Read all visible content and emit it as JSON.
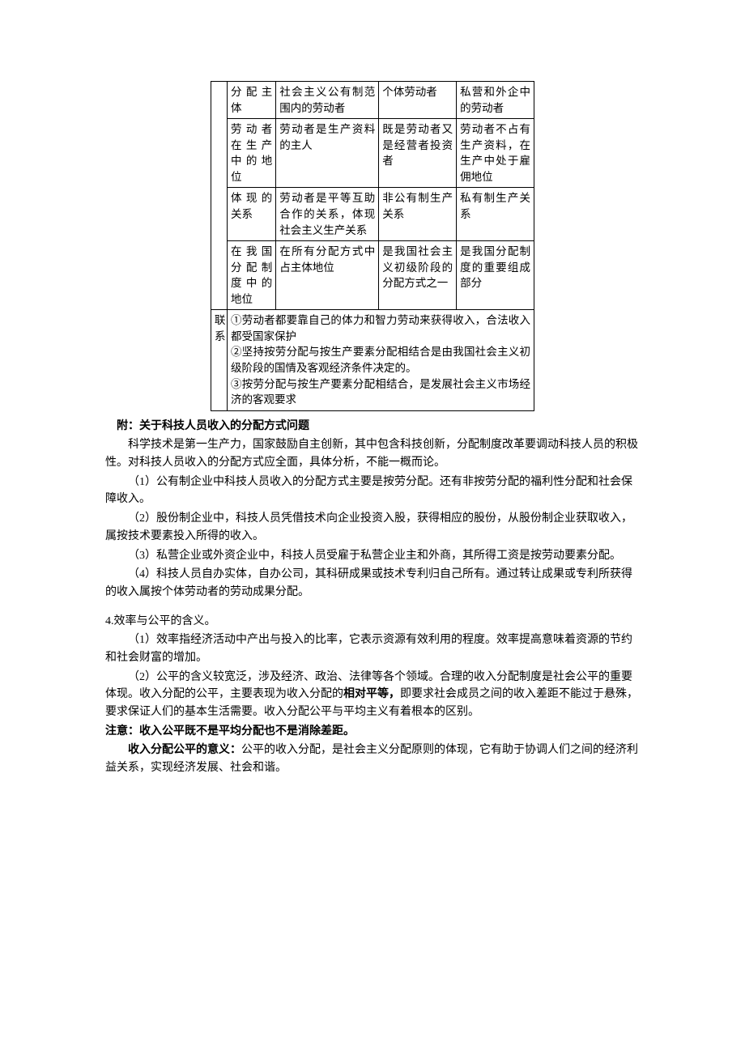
{
  "table": {
    "left_rowspan_top": "",
    "left_lianxi": "联系",
    "rows": [
      {
        "label": "分配主体",
        "a": "社会主义公有制范围内的劳动者",
        "b": "个体劳动者",
        "c": "私营和外企中的劳动者"
      },
      {
        "label": "劳动者在生产中的地位",
        "a": "劳动者是生产资料的主人",
        "b": "既是劳动者又是经营者投资者",
        "c": "劳动者不占有生产资料，在生产中处于雇佣地位"
      },
      {
        "label": "体现的关系",
        "a": "劳动者是平等互助合作的关系，体现社会主义生产关系",
        "b": "非公有制生产关系",
        "c": "私有制生产关系"
      },
      {
        "label": "在我国分配制度中的地位",
        "a": "在所有分配方式中占主体地位",
        "b": "是我国社会主义初级阶段的分配方式之一",
        "c": "是我国分配制度的重要组成部分"
      }
    ],
    "lianxi_text": "①劳动者都要靠自己的体力和智力劳动来获得收入，合法收入都受国家保护\n②坚持按劳分配与按生产要素分配相结合是由我国社会主义初级阶段的国情及客观经济条件决定的。\n③按劳分配与按生产要素分配相结合，是发展社会主义市场经济的客观要求"
  },
  "appendix": {
    "title": "附：关于科技人员收入的分配方式问题",
    "intro": "科学技术是第一生产力，国家鼓励自主创新，其中包含科技创新，分配制度改革要调动科技人员的积极性。对科技人员收入的分配方式应全面，具体分析，不能一概而论。",
    "items": [
      "（1）公有制企业中科技人员收入的分配方式主要是按劳分配。还有非按劳分配的福利性分配和社会保障收入。",
      "（2）股份制企业中，科技人员凭借技术向企业投资入股，获得相应的股份，从股份制企业获取收入，属按技术要素投入所得的收入。",
      "（3）私营企业或外资企业中，科技人员受雇于私营企业主和外商，其所得工资是按劳动要素分配。",
      "（4）科技人员自办实体，自办公司，其科研成果或技术专利归自己所有。通过转让成果或专利所获得的收入属按个体劳动者的劳动成果分配。"
    ]
  },
  "section4": {
    "heading": "4.效率与公平的含义。",
    "p1": "（1）效率指经济活动中产出与投入的比率，它表示资源有效利用的程度。效率提高意味着资源的节约和社会财富的增加。",
    "p2_a": "（2）公平的含义较宽泛，涉及经济、政治、法律等各个领域。合理的收入分配制度是社会公平的重要体现。收入分配的公平，主要表现为收入分配的",
    "p2_bold": "相对平等，",
    "p2_b": "即要求社会成员之间的收入差距不能过于悬殊，要求保证人们的基本生活需要。收入分配公平与平均主义有着根本的区别。",
    "note_label": "注意：",
    "note_text": "收入公平既不是平均分配也不是消除差距。",
    "meaning_label": "收入分配公平的意义：",
    "meaning_text": "公平的收入分配，是社会主义分配原则的体现，它有助于协调人们之间的经济利益关系，实现经济发展、社会和谐。"
  }
}
